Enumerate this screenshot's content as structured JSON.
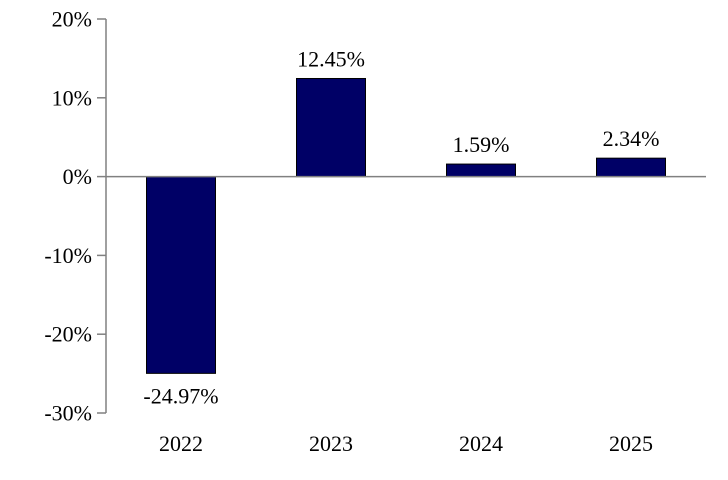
{
  "chart_data": {
    "type": "bar",
    "categories": [
      "2022",
      "2023",
      "2024",
      "2025"
    ],
    "values": [
      -24.97,
      12.45,
      1.59,
      2.34
    ],
    "data_labels": [
      "-24.97%",
      "12.45%",
      "1.59%",
      "2.34%"
    ],
    "ylim": [
      -30,
      20
    ],
    "yticks": [
      20,
      10,
      0,
      -10,
      -20,
      -30
    ],
    "ytick_labels": [
      "20%",
      "10%",
      "0%",
      "-10%",
      "-20%",
      "-30%"
    ],
    "grid": false,
    "legend": "none",
    "colors": {
      "bar": "#000066",
      "bar_border": "#000000",
      "axis": "#808080"
    }
  }
}
